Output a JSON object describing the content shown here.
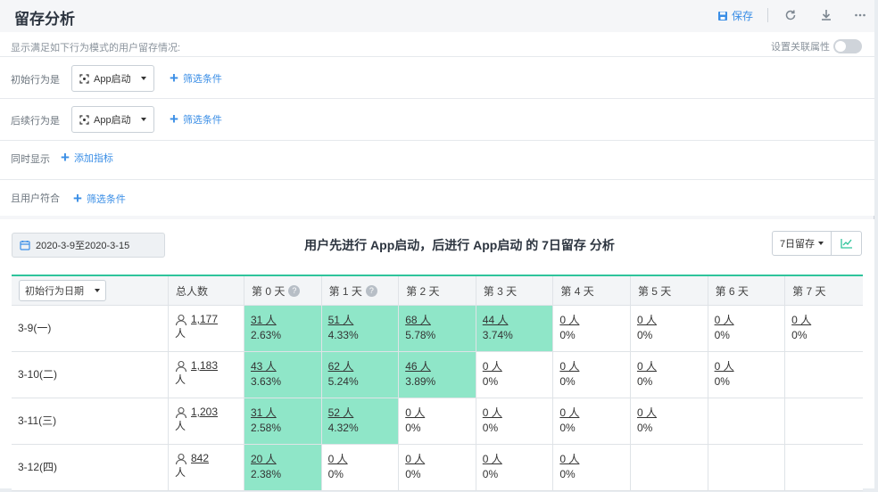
{
  "header": {
    "title": "留存分析",
    "save_label": "保存"
  },
  "config": {
    "subtitle": "显示满足如下行为模式的用户留存情况:",
    "relate_label": "设置关联属性",
    "initial_label": "初始行为是",
    "initial_event": "App启动",
    "followup_label": "后续行为是",
    "followup_event": "App启动",
    "filter_label": "筛选条件",
    "show_also_label": "同时显示",
    "add_metric_label": "添加指标",
    "user_match_label": "且用户符合"
  },
  "toolbar": {
    "date_range": "2020-3-9至2020-3-15",
    "analysis_title": "用户先进行 App启动，后进行 App启动 的 7日留存 分析",
    "retention_select": "7日留存"
  },
  "table": {
    "date_col": "初始行为日期",
    "total_col": "总人数",
    "day_cols": [
      "第 0 天",
      "第 1 天",
      "第 2 天",
      "第 3 天",
      "第 4 天",
      "第 5 天",
      "第 6 天",
      "第 7 天"
    ],
    "rows": [
      {
        "date": "3-9(一)",
        "total": "1,177",
        "unit": "人",
        "cells": [
          {
            "count": "31 人",
            "pct": "2.63%",
            "hl": true
          },
          {
            "count": "51 人",
            "pct": "4.33%",
            "hl": true
          },
          {
            "count": "68 人",
            "pct": "5.78%",
            "hl": true
          },
          {
            "count": "44 人",
            "pct": "3.74%",
            "hl": true
          },
          {
            "count": "0 人",
            "pct": "0%",
            "hl": false
          },
          {
            "count": "0 人",
            "pct": "0%",
            "hl": false
          },
          {
            "count": "0 人",
            "pct": "0%",
            "hl": false
          },
          {
            "count": "0 人",
            "pct": "0%",
            "hl": false
          }
        ]
      },
      {
        "date": "3-10(二)",
        "total": "1,183",
        "unit": "人",
        "cells": [
          {
            "count": "43 人",
            "pct": "3.63%",
            "hl": true
          },
          {
            "count": "62 人",
            "pct": "5.24%",
            "hl": true
          },
          {
            "count": "46 人",
            "pct": "3.89%",
            "hl": true
          },
          {
            "count": "0 人",
            "pct": "0%",
            "hl": false
          },
          {
            "count": "0 人",
            "pct": "0%",
            "hl": false
          },
          {
            "count": "0 人",
            "pct": "0%",
            "hl": false
          },
          {
            "count": "0 人",
            "pct": "0%",
            "hl": false
          },
          null
        ]
      },
      {
        "date": "3-11(三)",
        "total": "1,203",
        "unit": "人",
        "cells": [
          {
            "count": "31 人",
            "pct": "2.58%",
            "hl": true
          },
          {
            "count": "52 人",
            "pct": "4.32%",
            "hl": true
          },
          {
            "count": "0 人",
            "pct": "0%",
            "hl": false
          },
          {
            "count": "0 人",
            "pct": "0%",
            "hl": false
          },
          {
            "count": "0 人",
            "pct": "0%",
            "hl": false
          },
          {
            "count": "0 人",
            "pct": "0%",
            "hl": false
          },
          null,
          null
        ]
      },
      {
        "date": "3-12(四)",
        "total": "842",
        "unit": "人",
        "cells": [
          {
            "count": "20 人",
            "pct": "2.38%",
            "hl": true
          },
          {
            "count": "0 人",
            "pct": "0%",
            "hl": false
          },
          {
            "count": "0 人",
            "pct": "0%",
            "hl": false
          },
          {
            "count": "0 人",
            "pct": "0%",
            "hl": false
          },
          {
            "count": "0 人",
            "pct": "0%",
            "hl": false
          },
          null,
          null,
          null
        ]
      }
    ]
  },
  "colors": {
    "accent": "#3a8ee6",
    "highlight": "#8fe6c8",
    "table_top": "#2ec49b"
  },
  "icons": [
    "save-icon",
    "refresh-icon",
    "download-icon",
    "more-icon",
    "event-icon",
    "calendar-icon",
    "line-chart-icon",
    "user-icon",
    "help-icon"
  ]
}
